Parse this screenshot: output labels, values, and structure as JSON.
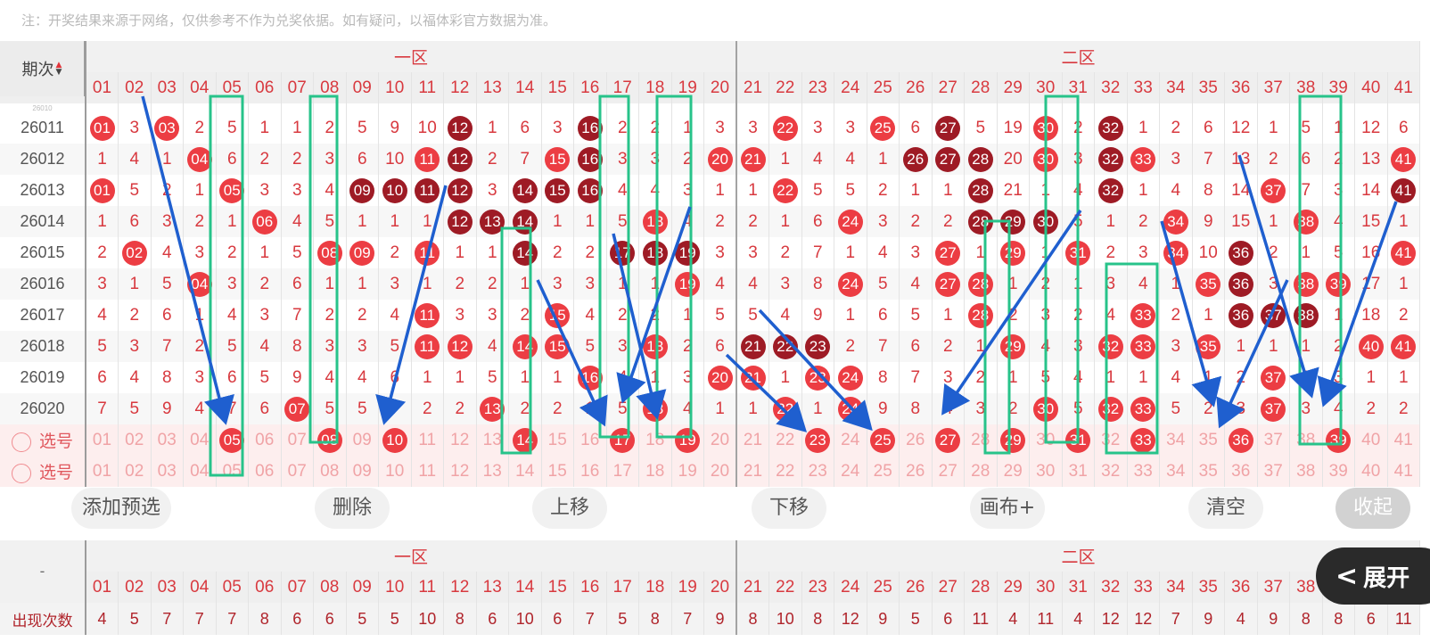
{
  "notice": "注：开奖结果来源于网络，仅供参考不作为兑奖依据。如有疑问，以福体彩官方数据为准。",
  "header": {
    "period_label": "期次",
    "zone1_label": "一区",
    "zone2_label": "二区"
  },
  "numbers": [
    "01",
    "02",
    "03",
    "04",
    "05",
    "06",
    "07",
    "08",
    "09",
    "10",
    "11",
    "12",
    "13",
    "14",
    "15",
    "16",
    "17",
    "18",
    "19",
    "20",
    "21",
    "22",
    "23",
    "24",
    "25",
    "26",
    "27",
    "28",
    "29",
    "30",
    "31",
    "32",
    "33",
    "34",
    "35",
    "36",
    "37",
    "38",
    "39",
    "40",
    "41"
  ],
  "partial_row": {
    "period": "26010"
  },
  "rows": [
    {
      "period": "26011",
      "cells": [
        [
          "01",
          "r"
        ],
        [
          "3"
        ],
        [
          "03",
          "r"
        ],
        [
          "2"
        ],
        [
          "5"
        ],
        [
          "1"
        ],
        [
          "1"
        ],
        [
          "2"
        ],
        [
          "5"
        ],
        [
          "9"
        ],
        [
          "10"
        ],
        [
          "12",
          "d"
        ],
        [
          "1"
        ],
        [
          "6"
        ],
        [
          "3"
        ],
        [
          "16",
          "d"
        ],
        [
          "2"
        ],
        [
          "2"
        ],
        [
          "1"
        ],
        [
          "3"
        ],
        [
          "3"
        ],
        [
          "22",
          "r"
        ],
        [
          "3"
        ],
        [
          "3"
        ],
        [
          "25",
          "r"
        ],
        [
          "6"
        ],
        [
          "27",
          "d"
        ],
        [
          "5"
        ],
        [
          "19"
        ],
        [
          "30",
          "r"
        ],
        [
          "2"
        ],
        [
          "32",
          "d"
        ],
        [
          "1"
        ],
        [
          "2"
        ],
        [
          "6"
        ],
        [
          "12"
        ],
        [
          "1"
        ],
        [
          "5"
        ],
        [
          "1"
        ],
        [
          "12"
        ],
        [
          "6"
        ]
      ]
    },
    {
      "period": "26012",
      "cells": [
        [
          "1"
        ],
        [
          "4"
        ],
        [
          "1"
        ],
        [
          "04",
          "r"
        ],
        [
          "6"
        ],
        [
          "2"
        ],
        [
          "2"
        ],
        [
          "3"
        ],
        [
          "6"
        ],
        [
          "10"
        ],
        [
          "11",
          "r"
        ],
        [
          "12",
          "d"
        ],
        [
          "2"
        ],
        [
          "7"
        ],
        [
          "15",
          "r"
        ],
        [
          "16",
          "d"
        ],
        [
          "3"
        ],
        [
          "3"
        ],
        [
          "2"
        ],
        [
          "20",
          "r"
        ],
        [
          "21",
          "r"
        ],
        [
          "1"
        ],
        [
          "4"
        ],
        [
          "4"
        ],
        [
          "1"
        ],
        [
          "26",
          "d"
        ],
        [
          "27",
          "d"
        ],
        [
          "28",
          "d"
        ],
        [
          "20"
        ],
        [
          "30",
          "r"
        ],
        [
          "3"
        ],
        [
          "32",
          "d"
        ],
        [
          "33",
          "r"
        ],
        [
          "3"
        ],
        [
          "7"
        ],
        [
          "13"
        ],
        [
          "2"
        ],
        [
          "6"
        ],
        [
          "2"
        ],
        [
          "13"
        ],
        [
          "41",
          "r"
        ]
      ]
    },
    {
      "period": "26013",
      "cells": [
        [
          "01",
          "r"
        ],
        [
          "5"
        ],
        [
          "2"
        ],
        [
          "1"
        ],
        [
          "05",
          "r"
        ],
        [
          "3"
        ],
        [
          "3"
        ],
        [
          "4"
        ],
        [
          "09",
          "d"
        ],
        [
          "10",
          "d"
        ],
        [
          "11",
          "d"
        ],
        [
          "12",
          "d"
        ],
        [
          "3"
        ],
        [
          "14",
          "d"
        ],
        [
          "15",
          "d"
        ],
        [
          "16",
          "d"
        ],
        [
          "4"
        ],
        [
          "4"
        ],
        [
          "3"
        ],
        [
          "1"
        ],
        [
          "1"
        ],
        [
          "22",
          "r"
        ],
        [
          "5"
        ],
        [
          "5"
        ],
        [
          "2"
        ],
        [
          "1"
        ],
        [
          "1"
        ],
        [
          "28",
          "d"
        ],
        [
          "21"
        ],
        [
          "1"
        ],
        [
          "4"
        ],
        [
          "32",
          "d"
        ],
        [
          "1"
        ],
        [
          "4"
        ],
        [
          "8"
        ],
        [
          "14"
        ],
        [
          "37",
          "r"
        ],
        [
          "7"
        ],
        [
          "3"
        ],
        [
          "14"
        ],
        [
          "41",
          "d"
        ]
      ]
    },
    {
      "period": "26014",
      "cells": [
        [
          "1"
        ],
        [
          "6"
        ],
        [
          "3"
        ],
        [
          "2"
        ],
        [
          "1"
        ],
        [
          "06",
          "r"
        ],
        [
          "4"
        ],
        [
          "5"
        ],
        [
          "1"
        ],
        [
          "1"
        ],
        [
          "1"
        ],
        [
          "12",
          "d"
        ],
        [
          "13",
          "d"
        ],
        [
          "14",
          "d"
        ],
        [
          "1"
        ],
        [
          "1"
        ],
        [
          "5"
        ],
        [
          "18",
          "r"
        ],
        [
          "4"
        ],
        [
          "2"
        ],
        [
          "2"
        ],
        [
          "1"
        ],
        [
          "6"
        ],
        [
          "24",
          "r"
        ],
        [
          "3"
        ],
        [
          "2"
        ],
        [
          "2"
        ],
        [
          "28",
          "d"
        ],
        [
          "29",
          "d"
        ],
        [
          "30",
          "d"
        ],
        [
          "5"
        ],
        [
          "1"
        ],
        [
          "2"
        ],
        [
          "34",
          "r"
        ],
        [
          "9"
        ],
        [
          "15"
        ],
        [
          "1"
        ],
        [
          "38",
          "r"
        ],
        [
          "4"
        ],
        [
          "15"
        ],
        [
          "1"
        ]
      ]
    },
    {
      "period": "26015",
      "cells": [
        [
          "2"
        ],
        [
          "02",
          "r"
        ],
        [
          "4"
        ],
        [
          "3"
        ],
        [
          "2"
        ],
        [
          "1"
        ],
        [
          "5"
        ],
        [
          "08",
          "r"
        ],
        [
          "09",
          "r"
        ],
        [
          "2"
        ],
        [
          "11",
          "r"
        ],
        [
          "1"
        ],
        [
          "1"
        ],
        [
          "14",
          "d"
        ],
        [
          "2"
        ],
        [
          "2"
        ],
        [
          "17",
          "d"
        ],
        [
          "18",
          "d"
        ],
        [
          "19",
          "d"
        ],
        [
          "3"
        ],
        [
          "3"
        ],
        [
          "2"
        ],
        [
          "7"
        ],
        [
          "1"
        ],
        [
          "4"
        ],
        [
          "3"
        ],
        [
          "27",
          "r"
        ],
        [
          "1"
        ],
        [
          "29",
          "r"
        ],
        [
          "1"
        ],
        [
          "31",
          "r"
        ],
        [
          "2"
        ],
        [
          "3"
        ],
        [
          "34",
          "r"
        ],
        [
          "10"
        ],
        [
          "36",
          "d"
        ],
        [
          "2"
        ],
        [
          "1"
        ],
        [
          "5"
        ],
        [
          "16"
        ],
        [
          "41",
          "r"
        ]
      ]
    },
    {
      "period": "26016",
      "cells": [
        [
          "3"
        ],
        [
          "1"
        ],
        [
          "5"
        ],
        [
          "04",
          "r"
        ],
        [
          "3"
        ],
        [
          "2"
        ],
        [
          "6"
        ],
        [
          "1"
        ],
        [
          "1"
        ],
        [
          "3"
        ],
        [
          "1"
        ],
        [
          "2"
        ],
        [
          "2"
        ],
        [
          "1"
        ],
        [
          "3"
        ],
        [
          "3"
        ],
        [
          "1"
        ],
        [
          "1"
        ],
        [
          "19",
          "r"
        ],
        [
          "4"
        ],
        [
          "4"
        ],
        [
          "3"
        ],
        [
          "8"
        ],
        [
          "24",
          "r"
        ],
        [
          "5"
        ],
        [
          "4"
        ],
        [
          "27",
          "r"
        ],
        [
          "28",
          "r"
        ],
        [
          "1"
        ],
        [
          "2"
        ],
        [
          "1"
        ],
        [
          "3"
        ],
        [
          "4"
        ],
        [
          "1"
        ],
        [
          "35",
          "r"
        ],
        [
          "36",
          "d"
        ],
        [
          "3"
        ],
        [
          "38",
          "r"
        ],
        [
          "39",
          "r"
        ],
        [
          "17"
        ],
        [
          "1"
        ]
      ]
    },
    {
      "period": "26017",
      "cells": [
        [
          "4"
        ],
        [
          "2"
        ],
        [
          "6"
        ],
        [
          "1"
        ],
        [
          "4"
        ],
        [
          "3"
        ],
        [
          "7"
        ],
        [
          "2"
        ],
        [
          "2"
        ],
        [
          "4"
        ],
        [
          "11",
          "r"
        ],
        [
          "3"
        ],
        [
          "3"
        ],
        [
          "2"
        ],
        [
          "15",
          "r"
        ],
        [
          "4"
        ],
        [
          "2"
        ],
        [
          "2"
        ],
        [
          "1"
        ],
        [
          "5"
        ],
        [
          "5"
        ],
        [
          "4"
        ],
        [
          "9"
        ],
        [
          "1"
        ],
        [
          "6"
        ],
        [
          "5"
        ],
        [
          "1"
        ],
        [
          "28",
          "r"
        ],
        [
          "2"
        ],
        [
          "3"
        ],
        [
          "2"
        ],
        [
          "4"
        ],
        [
          "33",
          "r"
        ],
        [
          "2"
        ],
        [
          "1"
        ],
        [
          "36",
          "d"
        ],
        [
          "37",
          "d"
        ],
        [
          "38",
          "d"
        ],
        [
          "1"
        ],
        [
          "18"
        ],
        [
          "2"
        ]
      ]
    },
    {
      "period": "26018",
      "cells": [
        [
          "5"
        ],
        [
          "3"
        ],
        [
          "7"
        ],
        [
          "2"
        ],
        [
          "5"
        ],
        [
          "4"
        ],
        [
          "8"
        ],
        [
          "3"
        ],
        [
          "3"
        ],
        [
          "5"
        ],
        [
          "11",
          "r"
        ],
        [
          "12",
          "r"
        ],
        [
          "4"
        ],
        [
          "14",
          "r"
        ],
        [
          "15",
          "r"
        ],
        [
          "5"
        ],
        [
          "3"
        ],
        [
          "18",
          "r"
        ],
        [
          "2"
        ],
        [
          "6"
        ],
        [
          "21",
          "d"
        ],
        [
          "22",
          "d"
        ],
        [
          "23",
          "d"
        ],
        [
          "2"
        ],
        [
          "7"
        ],
        [
          "6"
        ],
        [
          "2"
        ],
        [
          "1"
        ],
        [
          "29",
          "r"
        ],
        [
          "4"
        ],
        [
          "3"
        ],
        [
          "32",
          "r"
        ],
        [
          "33",
          "r"
        ],
        [
          "3"
        ],
        [
          "35",
          "r"
        ],
        [
          "1"
        ],
        [
          "1"
        ],
        [
          "1"
        ],
        [
          "2"
        ],
        [
          "40",
          "r"
        ],
        [
          "41",
          "r"
        ]
      ]
    },
    {
      "period": "26019",
      "cells": [
        [
          "6"
        ],
        [
          "4"
        ],
        [
          "8"
        ],
        [
          "3"
        ],
        [
          "6"
        ],
        [
          "5"
        ],
        [
          "9"
        ],
        [
          "4"
        ],
        [
          "4"
        ],
        [
          "6"
        ],
        [
          "1"
        ],
        [
          "1"
        ],
        [
          "5"
        ],
        [
          "1"
        ],
        [
          "1"
        ],
        [
          "16",
          "r"
        ],
        [
          "4"
        ],
        [
          "1"
        ],
        [
          "3"
        ],
        [
          "20",
          "r"
        ],
        [
          "21",
          "r"
        ],
        [
          "1"
        ],
        [
          "23",
          "r"
        ],
        [
          "24",
          "r"
        ],
        [
          "8"
        ],
        [
          "7"
        ],
        [
          "3"
        ],
        [
          "2"
        ],
        [
          "1"
        ],
        [
          "5"
        ],
        [
          "4"
        ],
        [
          "1"
        ],
        [
          "1"
        ],
        [
          "4"
        ],
        [
          "1"
        ],
        [
          "2"
        ],
        [
          "37",
          "r"
        ],
        [
          "2"
        ],
        [
          "3"
        ],
        [
          "1"
        ],
        [
          "1"
        ]
      ]
    },
    {
      "period": "26020",
      "cells": [
        [
          "7"
        ],
        [
          "5"
        ],
        [
          "9"
        ],
        [
          "4"
        ],
        [
          "7"
        ],
        [
          "6"
        ],
        [
          "07",
          "r"
        ],
        [
          "5"
        ],
        [
          "5"
        ],
        [
          "7"
        ],
        [
          "2"
        ],
        [
          "2"
        ],
        [
          "13",
          "r"
        ],
        [
          "2"
        ],
        [
          "2"
        ],
        [
          "1"
        ],
        [
          "5"
        ],
        [
          "18",
          "r"
        ],
        [
          "4"
        ],
        [
          "1"
        ],
        [
          "1"
        ],
        [
          "22",
          "r"
        ],
        [
          "1"
        ],
        [
          "24",
          "r"
        ],
        [
          "9"
        ],
        [
          "8"
        ],
        [
          "4"
        ],
        [
          "3"
        ],
        [
          "2"
        ],
        [
          "30",
          "r"
        ],
        [
          "5"
        ],
        [
          "32",
          "r"
        ],
        [
          "33",
          "r"
        ],
        [
          "5"
        ],
        [
          "2"
        ],
        [
          "3"
        ],
        [
          "37",
          "r"
        ],
        [
          "3"
        ],
        [
          "4"
        ],
        [
          "2"
        ],
        [
          "2"
        ]
      ]
    }
  ],
  "select_label": "选号",
  "select_row1_picked": [
    "05",
    "08",
    "10",
    "14",
    "17",
    "19",
    "23",
    "25",
    "27",
    "29",
    "31",
    "33",
    "36",
    "39"
  ],
  "toolbar": {
    "add": "添加预选",
    "delete": "删除",
    "up": "上移",
    "down": "下移",
    "canvas": "画布+",
    "clear": "清空",
    "collapse": "收起"
  },
  "expand_label": "展开",
  "bottom": {
    "dash": "-",
    "count_label": "出现次数",
    "counts": [
      "4",
      "5",
      "7",
      "7",
      "7",
      "8",
      "6",
      "6",
      "5",
      "5",
      "10",
      "8",
      "6",
      "10",
      "6",
      "7",
      "5",
      "8",
      "7",
      "9",
      "8",
      "10",
      "8",
      "12",
      "9",
      "5",
      "6",
      "11",
      "4",
      "11",
      "4",
      "12",
      "12",
      "7",
      "9",
      "4",
      "9",
      "8",
      "8",
      "6",
      "11"
    ]
  },
  "colors": {
    "ball_red": "#ec3d43",
    "ball_dark": "#9e1b25",
    "arrow_blue": "#1f5fcf",
    "box_green": "#27c38a"
  }
}
